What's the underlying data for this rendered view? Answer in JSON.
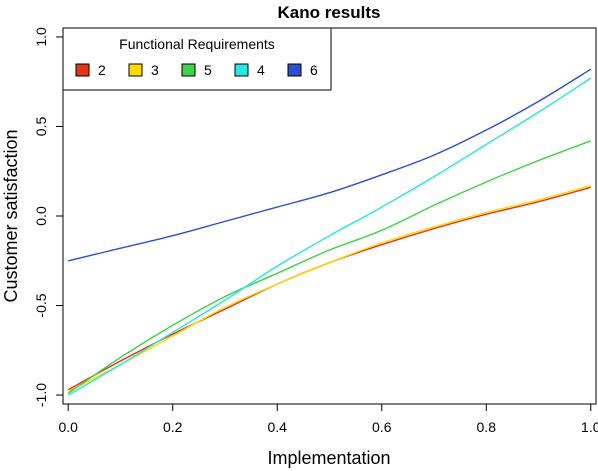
{
  "chart_data": {
    "type": "line",
    "title": "Kano results",
    "xlabel": "Implementation",
    "ylabel": "Customer satisfaction",
    "xlim": [
      -0.01,
      1.01
    ],
    "ylim": [
      -1.05,
      1.05
    ],
    "xticks": [
      "0.0",
      "0.2",
      "0.4",
      "0.6",
      "0.8",
      "1.0"
    ],
    "yticks": [
      "-1.0",
      "-0.5",
      "0.0",
      "0.5",
      "1.0"
    ],
    "grid": false,
    "legend": {
      "title": "Functional Requirements",
      "placement": "top-left"
    },
    "x": [
      0.0,
      0.1,
      0.2,
      0.3,
      0.4,
      0.5,
      0.6,
      0.7,
      0.8,
      0.9,
      1.0
    ],
    "series": [
      {
        "name": "2",
        "color": "#e8311a",
        "values": [
          -0.97,
          -0.81,
          -0.66,
          -0.52,
          -0.38,
          -0.26,
          -0.16,
          -0.07,
          0.01,
          0.08,
          0.16
        ]
      },
      {
        "name": "3",
        "color": "#ffd900",
        "values": [
          -0.98,
          -0.83,
          -0.67,
          -0.51,
          -0.38,
          -0.26,
          -0.15,
          -0.06,
          0.02,
          0.09,
          0.17
        ]
      },
      {
        "name": "5",
        "color": "#3ed34a",
        "values": [
          -0.99,
          -0.79,
          -0.61,
          -0.45,
          -0.32,
          -0.19,
          -0.08,
          0.06,
          0.19,
          0.31,
          0.42
        ]
      },
      {
        "name": "4",
        "color": "#27e6e3",
        "values": [
          -1.0,
          -0.83,
          -0.65,
          -0.47,
          -0.28,
          -0.11,
          0.05,
          0.22,
          0.4,
          0.58,
          0.77
        ]
      },
      {
        "name": "6",
        "color": "#2a4fd0",
        "values": [
          -0.25,
          -0.18,
          -0.11,
          -0.03,
          0.05,
          0.13,
          0.23,
          0.34,
          0.48,
          0.64,
          0.82
        ]
      }
    ]
  }
}
